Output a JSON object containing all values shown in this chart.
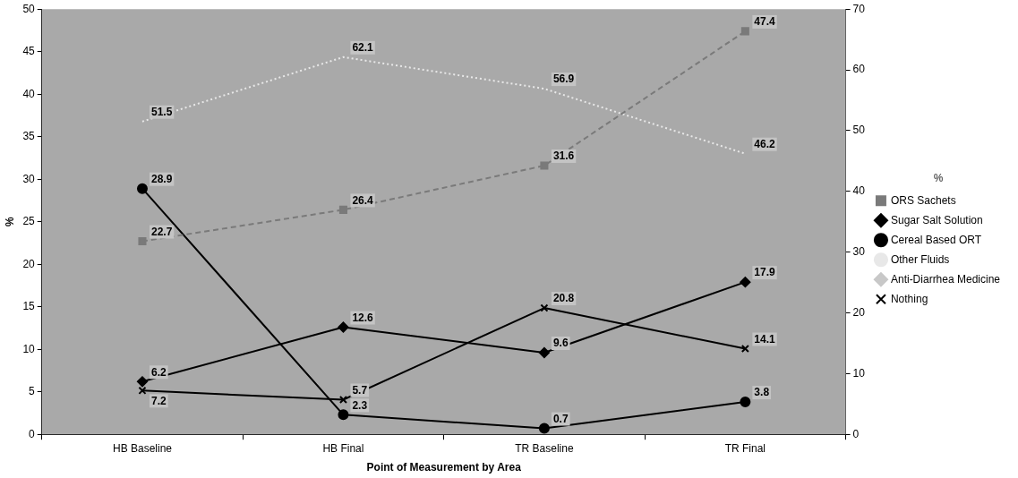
{
  "chart_data": {
    "type": "line",
    "xlabel": "Point of Measurement by Area",
    "ylabel": "%",
    "legend_title": "%",
    "categories": [
      "HB Baseline",
      "HB Final",
      "TR Baseline",
      "TR Final"
    ],
    "series": [
      {
        "name": "ORS Sachets",
        "color": "#7a7a7a",
        "marker": "square",
        "line_style": "dashed",
        "values": [
          22.7,
          26.4,
          31.6,
          47.4
        ]
      },
      {
        "name": "Sugar Salt Solution",
        "color": "#000000",
        "marker": "diamond",
        "line_style": "solid",
        "values": [
          6.2,
          12.6,
          9.6,
          17.9
        ]
      },
      {
        "name": "Cereal Based ORT",
        "color": "#000000",
        "marker": "circle",
        "line_style": "solid",
        "values": [
          28.9,
          2.3,
          0.7,
          3.8
        ]
      },
      {
        "name": "Other Fluids",
        "color": "#e8e8e8",
        "marker": "none",
        "line_style": "dotted",
        "axis": "y2",
        "values": [
          51.5,
          62.1,
          56.9,
          46.2
        ]
      },
      {
        "name": "Anti-Diarrhea Medicine",
        "color": "#c8c8c8",
        "marker": "diamond",
        "line_style": "dotted",
        "values": [
          null,
          null,
          null,
          null
        ]
      },
      {
        "name": "Nothing",
        "color": "#000000",
        "marker": "cross",
        "line_style": "solid",
        "axis": "y2",
        "values": [
          7.2,
          5.7,
          20.8,
          14.1
        ]
      }
    ],
    "ylim": [
      0,
      50
    ],
    "yticks": [
      0,
      5,
      10,
      15,
      20,
      25,
      30,
      35,
      40,
      45,
      50
    ],
    "y2lim": [
      0,
      70
    ],
    "y2ticks": [
      0,
      10,
      20,
      30,
      40,
      50,
      60,
      70
    ],
    "data_labels": true,
    "legend": "right",
    "grid": false
  }
}
